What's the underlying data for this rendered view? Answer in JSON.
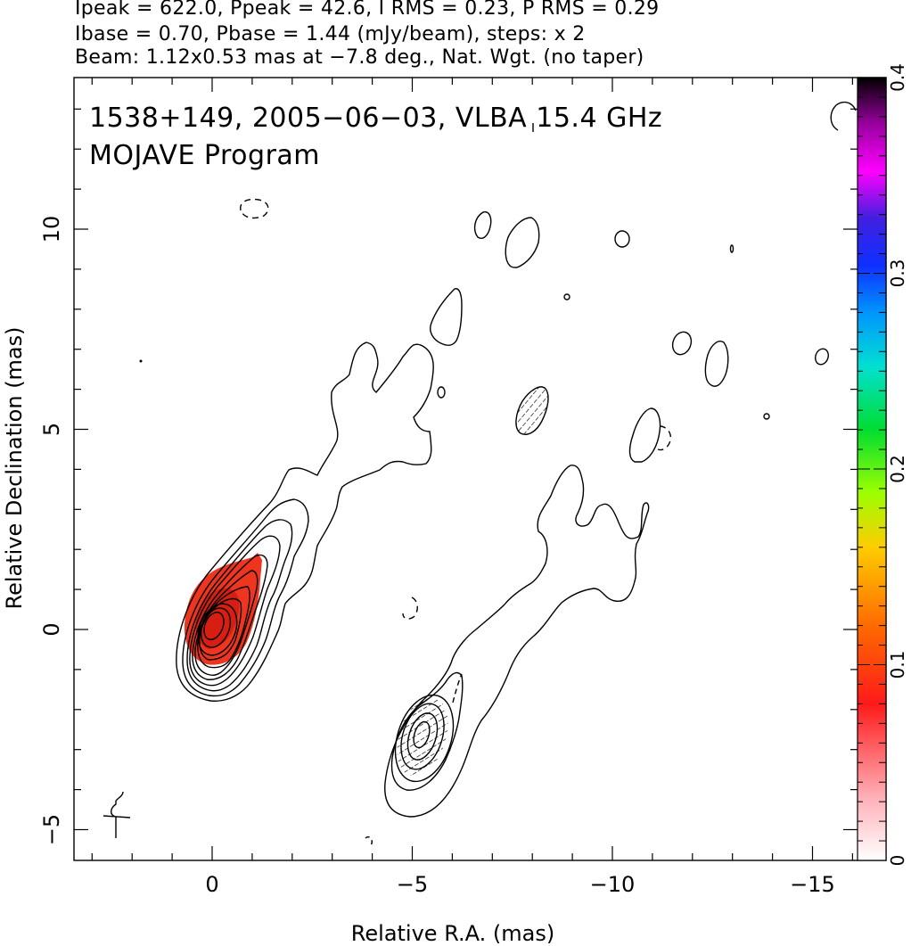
{
  "header": {
    "line1": "Ipeak = 622.0, Ppeak = 42.6, I RMS = 0.23, P RMS = 0.29",
    "line2": "Ibase = 0.70, Pbase = 1.44 (mJy/beam), steps: x 2",
    "line3": "Beam: 1.12x0.53 mas at −7.8 deg., Nat. Wgt. (no taper)"
  },
  "annotations": {
    "line1": "1538+149, 2005−06−03, VLBA 15.4 GHz",
    "line2": "MOJAVE Program"
  },
  "chart_data": {
    "type": "contour",
    "xlabel": "Relative R.A. (mas)",
    "ylabel": "Relative Declination (mas)",
    "xlim": [
      3.5,
      -16.5
    ],
    "ylim": [
      -5.8,
      13.8
    ],
    "x_ticks": [
      0,
      -5,
      -10,
      -15
    ],
    "x_tick_labels": [
      "0",
      "−5",
      "−10",
      "−15"
    ],
    "y_ticks": [
      -5,
      0,
      5,
      10
    ],
    "y_tick_labels": [
      "−5",
      "0",
      "5",
      "10"
    ],
    "colorbar": {
      "min": 0,
      "max": 0.4,
      "ticks": [
        0,
        0.1,
        0.2,
        0.3,
        0.4
      ],
      "tick_labels": [
        "0",
        "0.1",
        "0.2",
        "0.3",
        "0.4"
      ]
    },
    "colors": {
      "core_fill": "#ee3520",
      "core_fill_dark": "#d61e12"
    }
  }
}
